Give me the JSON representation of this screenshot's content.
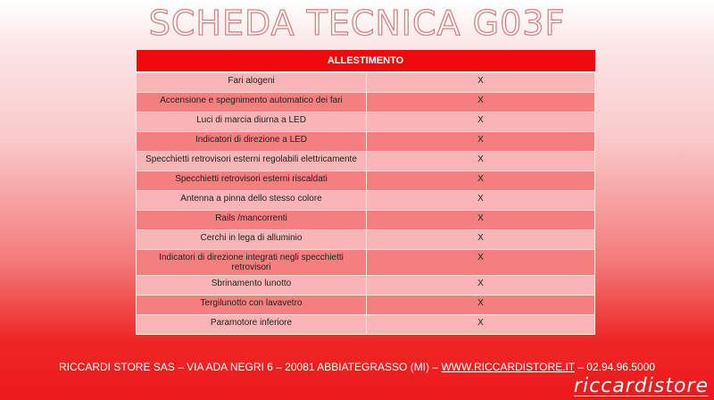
{
  "title": "SCHEDA TECNICA G03F",
  "table": {
    "header": "ALLESTIMENTO",
    "rows": [
      {
        "feature": "Fari alogeni",
        "value": "X"
      },
      {
        "feature": "Accensione e spegnimento automatico dei fari",
        "value": "X"
      },
      {
        "feature": "Luci di marcia diurna a LED",
        "value": "X"
      },
      {
        "feature": "Indicatori di direzione a LED",
        "value": "X"
      },
      {
        "feature": "Specchietti retrovisori esterni regolabili elettricamente",
        "value": "X"
      },
      {
        "feature": "Specchietti retrovisori esterni riscaldati",
        "value": "X"
      },
      {
        "feature": "Antenna a pinna dello stesso colore",
        "value": "X"
      },
      {
        "feature": "Rails /mancorrenti",
        "value": "X"
      },
      {
        "feature": "Cerchi in lega di alluminio",
        "value": "X"
      },
      {
        "feature": "Indicatori di direzione integrati negli specchietti retrovisori",
        "value": "X"
      },
      {
        "feature": "Sbrinamento lunotto",
        "value": "X"
      },
      {
        "feature": "Tergilunotto con lavavetro",
        "value": "X"
      },
      {
        "feature": "Paramotore inferiore",
        "value": "X"
      }
    ]
  },
  "footer": {
    "address": "RICCARDI STORE SAS – VIA ADA NEGRI 6 – 20081 ABBIATEGRASSO (MI) – ",
    "website": "WWW.RICCARDISTORE.IT",
    "phone": " – 02.94.96.5000"
  },
  "logo": "riccardistore",
  "colors": {
    "header": "#ee0a0a",
    "row_light": "#f9b5b5",
    "row_dark": "#f47f7f"
  }
}
